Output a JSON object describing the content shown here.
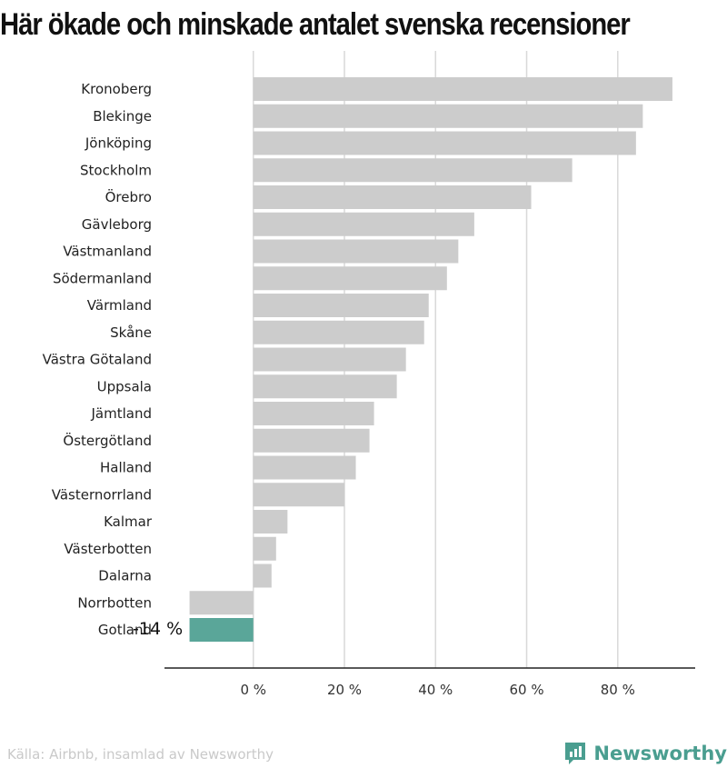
{
  "title": "Här ökade och minskade antalet svenska recensioner",
  "source": "Källa: Airbnb, insamlad av Newsworthy",
  "brand": {
    "name": "Newsworthy",
    "icon": "newsworthy-logo-icon",
    "color": "#4a9e90"
  },
  "colors": {
    "bar": "#cccccc",
    "highlight": "#5aa699",
    "grid": "#d9d9d9",
    "axis": "#222222"
  },
  "chart_data": {
    "type": "bar",
    "orientation": "horizontal",
    "categories": [
      "Kronoberg",
      "Blekinge",
      "Jönköping",
      "Stockholm",
      "Örebro",
      "Gävleborg",
      "Västmanland",
      "Södermanland",
      "Värmland",
      "Skåne",
      "Västra Götaland",
      "Uppsala",
      "Jämtland",
      "Östergötland",
      "Halland",
      "Västernorrland",
      "Kalmar",
      "Västerbotten",
      "Dalarna",
      "Norrbotten",
      "Gotland"
    ],
    "values": [
      92,
      85.5,
      84,
      70,
      61,
      48.5,
      45,
      42.5,
      38.5,
      37.5,
      33.5,
      31.5,
      26.5,
      25.5,
      22.5,
      20,
      7.5,
      5,
      4,
      -14,
      -14
    ],
    "highlight_index": 20,
    "annotation": {
      "category": "Gotland",
      "text": "-14 %"
    },
    "xlim": [
      -19.5,
      97
    ],
    "x_ticks": [
      0,
      20,
      40,
      60,
      80
    ],
    "x_tick_labels": [
      "0 %",
      "20 %",
      "40 %",
      "60 %",
      "80 %"
    ],
    "grid": true,
    "xlabel": "",
    "ylabel": ""
  }
}
